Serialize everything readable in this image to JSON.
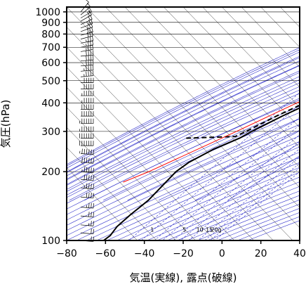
{
  "chart_data": {
    "type": "line",
    "subtype": "skew-T log-p thermodynamic diagram",
    "xlabel": "気温(実線), 露点(破線)",
    "ylabel": "気圧(hPa)",
    "x_ticks": [
      -80,
      -60,
      -40,
      -20,
      0,
      20,
      40
    ],
    "y_ticks": [
      100,
      200,
      300,
      400,
      500,
      600,
      700,
      800,
      900,
      1000
    ],
    "xlim": [
      -80,
      40
    ],
    "ylim": [
      1050,
      100
    ],
    "y_scale": "log",
    "grid": true,
    "mixing_ratio_labels": [
      "1",
      "5",
      "10",
      "15",
      "20g"
    ],
    "colors": {
      "temperature": "#000000",
      "dewpoint": "#000000",
      "parcel": "#ff0000",
      "background_lines": "#3333cc",
      "grid": "#000000"
    },
    "series": [
      {
        "line_style": "solid",
        "color": "#000000",
        "points": [
          {
            "p": 1000,
            "t": 19
          },
          {
            "p": 970,
            "t": 16
          },
          {
            "p": 925,
            "t": 12
          },
          {
            "p": 880,
            "t": 9
          },
          {
            "p": 850,
            "t": 8
          },
          {
            "p": 800,
            "t": 11
          },
          {
            "p": 760,
            "t": 4
          },
          {
            "p": 720,
            "t": -1
          },
          {
            "p": 700,
            "t": -2
          },
          {
            "p": 650,
            "t": -6
          },
          {
            "p": 600,
            "t": -9
          },
          {
            "p": 560,
            "t": -10
          },
          {
            "p": 520,
            "t": -10
          },
          {
            "p": 500,
            "t": -12
          },
          {
            "p": 450,
            "t": -17
          },
          {
            "p": 400,
            "t": -23
          },
          {
            "p": 350,
            "t": -31
          },
          {
            "p": 300,
            "t": -39
          },
          {
            "p": 280,
            "t": -42
          },
          {
            "p": 250,
            "t": -50
          },
          {
            "p": 220,
            "t": -56
          },
          {
            "p": 200,
            "t": -58
          },
          {
            "p": 180,
            "t": -58
          },
          {
            "p": 150,
            "t": -58
          },
          {
            "p": 130,
            "t": -60
          },
          {
            "p": 115,
            "t": -61
          },
          {
            "p": 105,
            "t": -60
          },
          {
            "p": 100,
            "t": -61
          }
        ]
      },
      {
        "line_style": "dashed",
        "color": "#000000",
        "points": [
          {
            "p": 1000,
            "t": 17
          },
          {
            "p": 960,
            "t": 13
          },
          {
            "p": 925,
            "t": 10
          },
          {
            "p": 880,
            "t": 7
          },
          {
            "p": 850,
            "t": 6
          },
          {
            "p": 830,
            "t": -4
          },
          {
            "p": 810,
            "t": 4
          },
          {
            "p": 800,
            "t": -6
          },
          {
            "p": 790,
            "t": 2
          },
          {
            "p": 770,
            "t": 2
          },
          {
            "p": 730,
            "t": -3
          },
          {
            "p": 700,
            "t": -5
          },
          {
            "p": 650,
            "t": -8
          },
          {
            "p": 600,
            "t": -11
          },
          {
            "p": 560,
            "t": -11
          },
          {
            "p": 520,
            "t": -12
          },
          {
            "p": 500,
            "t": -14
          },
          {
            "p": 450,
            "t": -20
          },
          {
            "p": 400,
            "t": -26
          },
          {
            "p": 350,
            "t": -34
          },
          {
            "p": 300,
            "t": -42
          },
          {
            "p": 285,
            "t": -45
          },
          {
            "p": 280,
            "t": -70
          }
        ]
      },
      {
        "line_style": "solid",
        "color": "#ff0000",
        "points": [
          {
            "p": 1000,
            "t": 19
          },
          {
            "p": 900,
            "t": 10
          },
          {
            "p": 850,
            "t": 6
          },
          {
            "p": 700,
            "t": -2
          },
          {
            "p": 600,
            "t": -9
          },
          {
            "p": 500,
            "t": -18
          },
          {
            "p": 400,
            "t": -30
          },
          {
            "p": 300,
            "t": -47
          },
          {
            "p": 200,
            "t": -72
          },
          {
            "p": 180,
            "t": -80
          }
        ]
      }
    ],
    "wind_barbs": [
      {
        "p": 1000,
        "dir": 220,
        "spd": 10
      },
      {
        "p": 970,
        "dir": 230,
        "spd": 15
      },
      {
        "p": 940,
        "dir": 240,
        "spd": 15
      },
      {
        "p": 910,
        "dir": 240,
        "spd": 20
      },
      {
        "p": 880,
        "dir": 245,
        "spd": 20
      },
      {
        "p": 850,
        "dir": 250,
        "spd": 25
      },
      {
        "p": 820,
        "dir": 250,
        "spd": 25
      },
      {
        "p": 790,
        "dir": 255,
        "spd": 30
      },
      {
        "p": 760,
        "dir": 255,
        "spd": 30
      },
      {
        "p": 730,
        "dir": 260,
        "spd": 35
      },
      {
        "p": 700,
        "dir": 260,
        "spd": 35
      },
      {
        "p": 670,
        "dir": 260,
        "spd": 35
      },
      {
        "p": 640,
        "dir": 265,
        "spd": 40
      },
      {
        "p": 610,
        "dir": 265,
        "spd": 40
      },
      {
        "p": 580,
        "dir": 265,
        "spd": 40
      },
      {
        "p": 550,
        "dir": 265,
        "spd": 45
      },
      {
        "p": 520,
        "dir": 265,
        "spd": 45
      },
      {
        "p": 490,
        "dir": 270,
        "spd": 50
      },
      {
        "p": 460,
        "dir": 270,
        "spd": 50
      },
      {
        "p": 430,
        "dir": 270,
        "spd": 55
      },
      {
        "p": 400,
        "dir": 270,
        "spd": 55
      },
      {
        "p": 375,
        "dir": 270,
        "spd": 60
      },
      {
        "p": 350,
        "dir": 270,
        "spd": 60
      },
      {
        "p": 325,
        "dir": 270,
        "spd": 65
      },
      {
        "p": 300,
        "dir": 270,
        "spd": 65
      },
      {
        "p": 280,
        "dir": 270,
        "spd": 70
      },
      {
        "p": 260,
        "dir": 270,
        "spd": 70
      },
      {
        "p": 240,
        "dir": 275,
        "spd": 65
      },
      {
        "p": 220,
        "dir": 275,
        "spd": 60
      },
      {
        "p": 200,
        "dir": 275,
        "spd": 55
      },
      {
        "p": 185,
        "dir": 275,
        "spd": 50
      },
      {
        "p": 170,
        "dir": 275,
        "spd": 45
      },
      {
        "p": 155,
        "dir": 275,
        "spd": 40
      },
      {
        "p": 140,
        "dir": 275,
        "spd": 35
      },
      {
        "p": 128,
        "dir": 275,
        "spd": 30
      },
      {
        "p": 117,
        "dir": 275,
        "spd": 25
      },
      {
        "p": 108,
        "dir": 275,
        "spd": 20
      },
      {
        "p": 100,
        "dir": 275,
        "spd": 20
      }
    ]
  }
}
